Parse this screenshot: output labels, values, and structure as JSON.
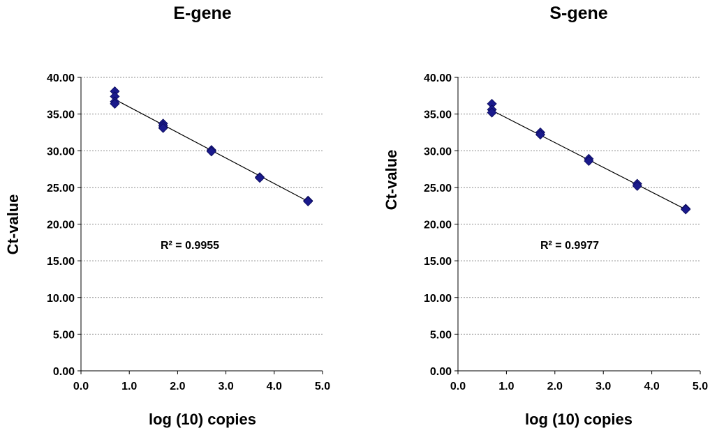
{
  "chart_data": [
    {
      "type": "scatter",
      "title": "E-gene",
      "xlabel": "log (10) copies",
      "ylabel": "Ct-value",
      "xlim": [
        0,
        5
      ],
      "ylim": [
        0,
        40
      ],
      "x_ticks": [
        "0.0",
        "1.0",
        "2.0",
        "3.0",
        "4.0",
        "5.0"
      ],
      "y_ticks": [
        "0.00",
        "5.00",
        "10.00",
        "15.00",
        "20.00",
        "25.00",
        "30.00",
        "35.00",
        "40.00"
      ],
      "grid": "horizontal dashed",
      "marker": "diamond",
      "marker_color": "#1a1a8c",
      "points": [
        {
          "x": 0.7,
          "y": 38.1
        },
        {
          "x": 0.7,
          "y": 37.4
        },
        {
          "x": 0.7,
          "y": 36.7
        },
        {
          "x": 0.7,
          "y": 36.4
        },
        {
          "x": 1.7,
          "y": 33.7
        },
        {
          "x": 1.7,
          "y": 33.4
        },
        {
          "x": 1.7,
          "y": 33.1
        },
        {
          "x": 2.7,
          "y": 30.1
        },
        {
          "x": 2.7,
          "y": 29.9
        },
        {
          "x": 3.7,
          "y": 26.4
        },
        {
          "x": 3.7,
          "y": 26.3
        },
        {
          "x": 4.7,
          "y": 23.2
        },
        {
          "x": 4.7,
          "y": 23.1
        }
      ],
      "trendline": {
        "type": "linear",
        "x": [
          0.7,
          4.7
        ],
        "y": [
          37.0,
          23.1
        ]
      },
      "annotation": "R² = 0.9955"
    },
    {
      "type": "scatter",
      "title": "S-gene",
      "xlabel": "log (10) copies",
      "ylabel": "Ct-value",
      "xlim": [
        0,
        5
      ],
      "ylim": [
        0,
        40
      ],
      "x_ticks": [
        "0.0",
        "1.0",
        "2.0",
        "3.0",
        "4.0",
        "5.0"
      ],
      "y_ticks": [
        "0.00",
        "5.00",
        "10.00",
        "15.00",
        "20.00",
        "25.00",
        "30.00",
        "35.00",
        "40.00"
      ],
      "grid": "horizontal dashed",
      "marker": "diamond",
      "marker_color": "#1a1a8c",
      "points": [
        {
          "x": 0.7,
          "y": 36.4
        },
        {
          "x": 0.7,
          "y": 35.6
        },
        {
          "x": 0.7,
          "y": 35.2
        },
        {
          "x": 1.7,
          "y": 32.5
        },
        {
          "x": 1.7,
          "y": 32.2
        },
        {
          "x": 2.7,
          "y": 28.9
        },
        {
          "x": 2.7,
          "y": 28.6
        },
        {
          "x": 3.7,
          "y": 25.5
        },
        {
          "x": 3.7,
          "y": 25.2
        },
        {
          "x": 4.7,
          "y": 22.1
        },
        {
          "x": 4.7,
          "y": 22.0
        }
      ],
      "trendline": {
        "type": "linear",
        "x": [
          0.7,
          4.7
        ],
        "y": [
          35.5,
          22.0
        ]
      },
      "annotation": "R² = 0.9977"
    }
  ]
}
